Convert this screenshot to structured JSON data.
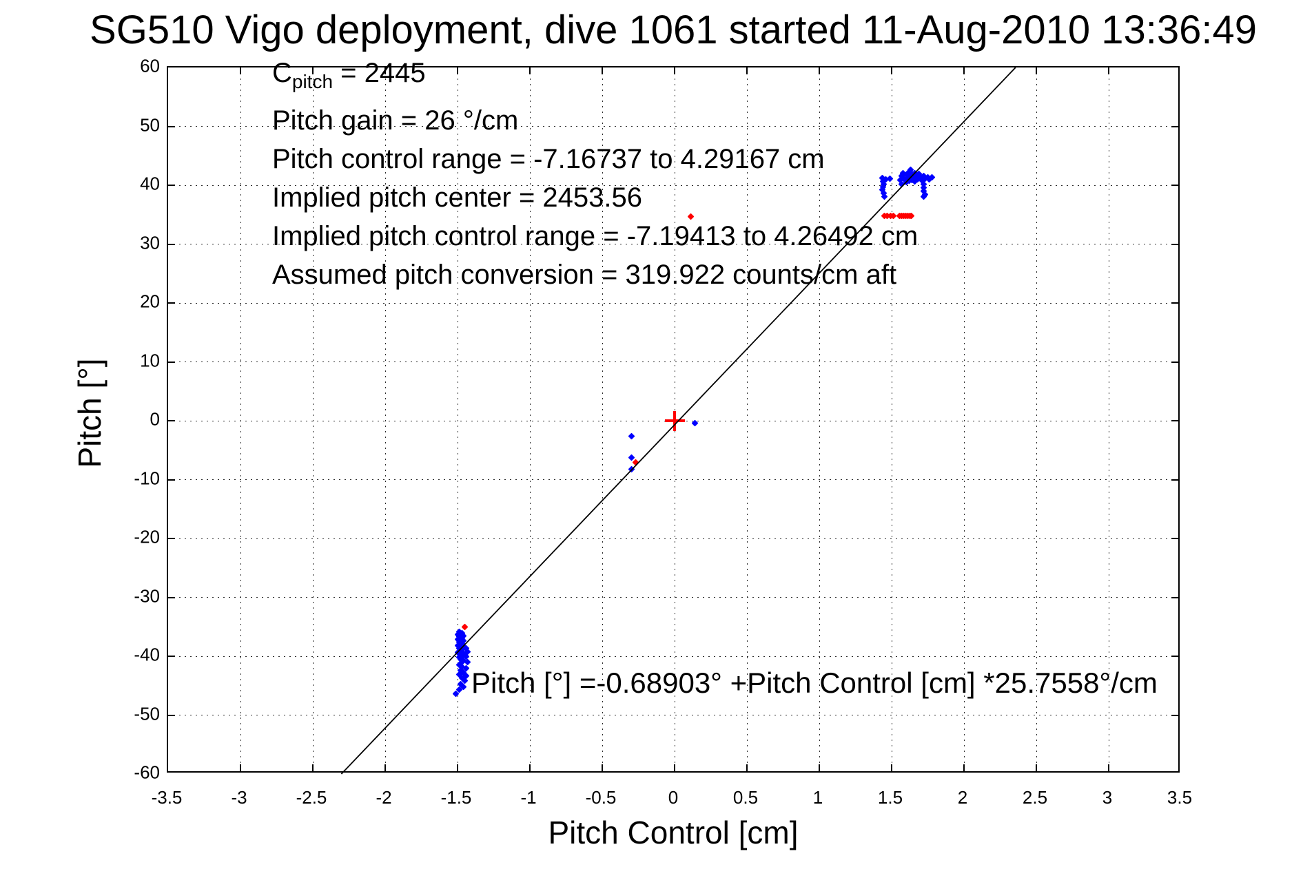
{
  "chart_data": {
    "type": "scatter",
    "title": "SG510 Vigo deployment, dive 1061 started 11-Aug-2010 13:36:49",
    "xlabel": "Pitch Control [cm]",
    "ylabel": "Pitch [°]",
    "xlim": [
      -3.5,
      3.5
    ],
    "ylim": [
      -60,
      60
    ],
    "grid": "dotted",
    "legend": "none",
    "x_ticks": [
      -3.5,
      -3,
      -2.5,
      -2,
      -1.5,
      -1,
      -0.5,
      0,
      0.5,
      1,
      1.5,
      2,
      2.5,
      3,
      3.5
    ],
    "x_tick_labels": [
      "-3.5",
      "-3",
      "-2.5",
      "-2",
      "-1.5",
      "-1",
      "-0.5",
      "0",
      "0.5",
      "1",
      "1.5",
      "2",
      "2.5",
      "3",
      "3.5"
    ],
    "y_ticks": [
      -60,
      -50,
      -40,
      -30,
      -20,
      -10,
      0,
      10,
      20,
      30,
      40,
      50,
      60
    ],
    "y_tick_labels": [
      "-60",
      "-50",
      "-40",
      "-30",
      "-20",
      "-10",
      "0",
      "10",
      "20",
      "30",
      "40",
      "50",
      "60"
    ],
    "annotation_cpitch": {
      "base": "C",
      "sub": "pitch",
      "rest": " = 2445"
    },
    "annotations": [
      "Pitch gain = 26 °/cm",
      "Pitch control range = -7.16737 to 4.29167 cm",
      "Implied pitch center = 2453.56",
      "Implied pitch control range = -7.19413 to 4.26492 cm",
      "Assumed pitch conversion = 319.922 counts/cm aft"
    ],
    "equation": "Pitch [°] =-0.68903° +Pitch Control [cm] *25.7558°/cm",
    "series": [
      {
        "name": "observed-pitch-points",
        "type": "scatter",
        "marker": "diamond",
        "color": "#0000FF",
        "size": 7,
        "points": [
          [
            -1.49,
            -35.9
          ],
          [
            -1.47,
            -36.1
          ],
          [
            -1.5,
            -36.3
          ],
          [
            -1.48,
            -36.3
          ],
          [
            -1.46,
            -36.5
          ],
          [
            -1.49,
            -36.7
          ],
          [
            -1.47,
            -36.9
          ],
          [
            -1.5,
            -37.1
          ],
          [
            -1.48,
            -37.2
          ],
          [
            -1.46,
            -37.4
          ],
          [
            -1.49,
            -37.6
          ],
          [
            -1.47,
            -37.8
          ],
          [
            -1.48,
            -38.0
          ],
          [
            -1.5,
            -38.2
          ],
          [
            -1.46,
            -38.3
          ],
          [
            -1.48,
            -38.5
          ],
          [
            -1.44,
            -38.6
          ],
          [
            -1.49,
            -38.7
          ],
          [
            -1.47,
            -38.9
          ],
          [
            -1.48,
            -39.1
          ],
          [
            -1.43,
            -39.2
          ],
          [
            -1.5,
            -39.3
          ],
          [
            -1.46,
            -39.5
          ],
          [
            -1.48,
            -39.7
          ],
          [
            -1.47,
            -39.9
          ],
          [
            -1.44,
            -40.1
          ],
          [
            -1.49,
            -40.2
          ],
          [
            -1.48,
            -40.5
          ],
          [
            -1.46,
            -40.8
          ],
          [
            -1.43,
            -41.0
          ],
          [
            -1.48,
            -41.2
          ],
          [
            -1.49,
            -41.5
          ],
          [
            -1.47,
            -41.8
          ],
          [
            -1.44,
            -42.1
          ],
          [
            -1.48,
            -42.4
          ],
          [
            -1.46,
            -42.8
          ],
          [
            -1.49,
            -43.1
          ],
          [
            -1.44,
            -43.3
          ],
          [
            -1.47,
            -43.7
          ],
          [
            -1.45,
            -44.2
          ],
          [
            -1.48,
            -44.7
          ],
          [
            -1.46,
            -45.2
          ],
          [
            -1.49,
            -45.7
          ],
          [
            -1.51,
            -46.4
          ],
          [
            0.14,
            -0.4
          ],
          [
            -0.3,
            -2.6
          ],
          [
            -0.3,
            -6.3
          ],
          [
            -0.3,
            -8.2
          ],
          [
            1.435,
            41.2
          ],
          [
            1.44,
            40.7
          ],
          [
            1.445,
            40.2
          ],
          [
            1.44,
            39.7
          ],
          [
            1.435,
            39.2
          ],
          [
            1.445,
            38.7
          ],
          [
            1.45,
            38.1
          ],
          [
            1.46,
            41.0
          ],
          [
            1.49,
            41.1
          ],
          [
            1.56,
            40.9
          ],
          [
            1.57,
            41.6
          ],
          [
            1.57,
            40.2
          ],
          [
            1.58,
            42.1
          ],
          [
            1.59,
            41.0
          ],
          [
            1.6,
            41.8
          ],
          [
            1.6,
            40.5
          ],
          [
            1.61,
            41.3
          ],
          [
            1.62,
            42.3
          ],
          [
            1.62,
            40.8
          ],
          [
            1.63,
            41.5
          ],
          [
            1.63,
            42.6
          ],
          [
            1.64,
            40.9
          ],
          [
            1.64,
            41.9
          ],
          [
            1.65,
            41.2
          ],
          [
            1.66,
            42.1
          ],
          [
            1.66,
            40.6
          ],
          [
            1.67,
            41.6
          ],
          [
            1.68,
            41.0
          ],
          [
            1.69,
            41.9
          ],
          [
            1.7,
            41.3
          ],
          [
            1.71,
            40.8
          ],
          [
            1.72,
            41.6
          ],
          [
            1.73,
            41.1
          ],
          [
            1.75,
            41.4
          ],
          [
            1.76,
            41.0
          ],
          [
            1.78,
            41.3
          ],
          [
            1.72,
            40.2
          ],
          [
            1.72,
            39.6
          ],
          [
            1.72,
            39.0
          ],
          [
            1.73,
            38.4
          ],
          [
            1.72,
            38.1
          ]
        ]
      },
      {
        "name": "implied-pitch-points",
        "type": "scatter",
        "marker": "diamond",
        "color": "#FF0000",
        "size": 7,
        "points": [
          [
            -1.451,
            -35.0
          ],
          [
            -0.27,
            -7.1
          ],
          [
            0.11,
            34.7
          ],
          [
            1.451,
            34.8
          ],
          [
            1.471,
            34.8
          ],
          [
            1.492,
            34.8
          ],
          [
            1.513,
            34.8
          ],
          [
            1.556,
            34.8
          ],
          [
            1.57,
            34.8
          ],
          [
            1.582,
            34.8
          ],
          [
            1.597,
            34.8
          ],
          [
            1.61,
            34.8
          ],
          [
            1.624,
            34.8
          ],
          [
            1.638,
            34.8
          ]
        ]
      },
      {
        "name": "origin-marker",
        "type": "scatter",
        "marker": "plus",
        "color": "#FF0000",
        "size": 29,
        "points": [
          [
            0,
            0
          ]
        ]
      },
      {
        "name": "linear-fit-line",
        "type": "line",
        "color": "#000000",
        "stroke_width": 1.8,
        "slope": 25.7558,
        "intercept": -0.68903
      }
    ]
  }
}
